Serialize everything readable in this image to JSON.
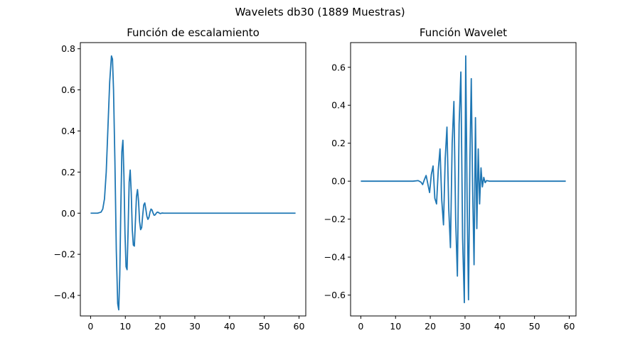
{
  "figure": {
    "suptitle": "Wavelets db30 (1889 Muestras)"
  },
  "chart_data": [
    {
      "type": "line",
      "title": "Función de escalamiento",
      "xlabel": "",
      "ylabel": "",
      "xlim": [
        -2.95,
        61.95
      ],
      "ylim": [
        -0.5,
        0.83
      ],
      "xticks": [
        0,
        10,
        20,
        30,
        40,
        50,
        60
      ],
      "yticks": [
        -0.4,
        -0.2,
        0.0,
        0.2,
        0.4,
        0.6,
        0.8
      ],
      "ytick_labels": [
        "−0.4",
        "−0.2",
        "0.0",
        "0.2",
        "0.4",
        "0.6",
        "0.8"
      ],
      "grid": false,
      "color": "#1f77b4",
      "series": [
        {
          "x": [
            0,
            2,
            3,
            3.5,
            4,
            4.5,
            5,
            5.5,
            6,
            6.3,
            6.6,
            7,
            7.4,
            7.8,
            8.1,
            8.4,
            8.7,
            9.0,
            9.3,
            9.6,
            9.9,
            10.2,
            10.5,
            10.8,
            11.1,
            11.4,
            11.7,
            12.0,
            12.3,
            12.6,
            12.9,
            13.2,
            13.5,
            13.8,
            14.1,
            14.4,
            14.7,
            15.0,
            15.3,
            15.6,
            15.9,
            16.2,
            16.5,
            16.8,
            17.1,
            17.4,
            17.7,
            18.0,
            18.3,
            18.6,
            18.9,
            19.2,
            19.5,
            19.8,
            20.1,
            20.4,
            20.7,
            21.0,
            21.5,
            22,
            25,
            30,
            40,
            50,
            59
          ],
          "y": [
            0,
            0,
            0.005,
            0.02,
            0.07,
            0.2,
            0.42,
            0.64,
            0.765,
            0.75,
            0.6,
            0.25,
            -0.18,
            -0.44,
            -0.47,
            -0.3,
            0.02,
            0.3,
            0.355,
            0.18,
            -0.1,
            -0.26,
            -0.275,
            -0.08,
            0.15,
            0.21,
            0.1,
            -0.08,
            -0.155,
            -0.16,
            -0.04,
            0.08,
            0.115,
            0.06,
            -0.04,
            -0.08,
            -0.07,
            -0.01,
            0.04,
            0.05,
            0.02,
            -0.015,
            -0.03,
            -0.02,
            0.005,
            0.02,
            0.015,
            0.0,
            -0.01,
            -0.008,
            0.0,
            0.005,
            0.004,
            0.0,
            -0.002,
            0.0,
            0.001,
            0.0,
            0.0,
            0.0,
            0.0,
            0.0,
            0.0,
            0.0,
            0.0
          ]
        }
      ]
    },
    {
      "type": "line",
      "title": "Función Wavelet",
      "xlabel": "",
      "ylabel": "",
      "xlim": [
        -2.95,
        61.95
      ],
      "ylim": [
        -0.71,
        0.73
      ],
      "xticks": [
        0,
        10,
        20,
        30,
        40,
        50,
        60
      ],
      "yticks": [
        -0.6,
        -0.4,
        -0.2,
        0.0,
        0.2,
        0.4,
        0.6
      ],
      "ytick_labels": [
        "−0.6",
        "−0.4",
        "−0.2",
        "0.0",
        "0.2",
        "0.4",
        "0.6"
      ],
      "grid": false,
      "color": "#1f77b4",
      "series": [
        {
          "x": [
            0,
            10,
            15,
            16.5,
            17.3,
            17.8,
            18.3,
            18.8,
            19.3,
            19.8,
            20.3,
            20.8,
            21.3,
            21.8,
            22.3,
            22.8,
            23.3,
            23.8,
            24.3,
            24.8,
            25.3,
            25.8,
            26.3,
            26.8,
            27.3,
            27.8,
            28.3,
            28.8,
            29.3,
            29.8,
            30.2,
            30.6,
            31.0,
            31.4,
            31.8,
            32.2,
            32.6,
            33.0,
            33.4,
            33.8,
            34.2,
            34.6,
            35.0,
            35.4,
            35.8,
            36.2,
            37,
            40,
            50,
            59
          ],
          "y": [
            0,
            0,
            0,
            0.003,
            -0.005,
            -0.018,
            0.008,
            0.03,
            -0.015,
            -0.06,
            0.035,
            0.08,
            -0.09,
            -0.12,
            0.06,
            0.17,
            -0.1,
            -0.23,
            0.12,
            0.285,
            -0.14,
            -0.35,
            0.2,
            0.42,
            -0.2,
            -0.5,
            0.3,
            0.575,
            -0.3,
            -0.64,
            0.66,
            -0.1,
            -0.625,
            0.1,
            0.54,
            -0.05,
            -0.44,
            0.335,
            -0.25,
            0.17,
            -0.12,
            0.07,
            -0.03,
            0.02,
            -0.008,
            0.003,
            0.0,
            0.0,
            0.0,
            0.0
          ]
        }
      ]
    }
  ]
}
